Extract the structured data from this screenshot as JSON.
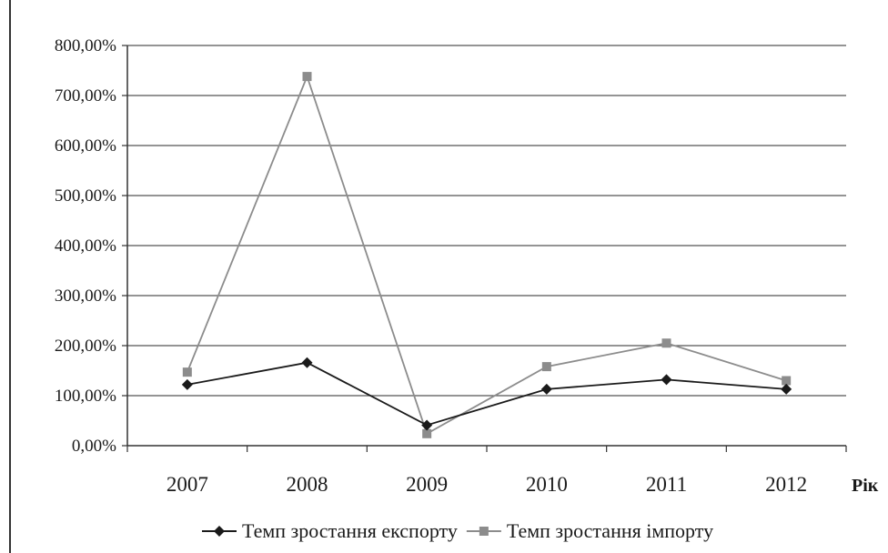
{
  "chart_data": {
    "type": "line",
    "categories": [
      "2007",
      "2008",
      "2009",
      "2010",
      "2011",
      "2012"
    ],
    "xlabel": "Рік",
    "ylabel": "",
    "ylim": [
      0,
      800
    ],
    "y_ticks": [
      "0,00%",
      "100,00%",
      "200,00%",
      "300,00%",
      "400,00%",
      "500,00%",
      "600,00%",
      "700,00%",
      "800,00%"
    ],
    "grid": true,
    "legend_position": "bottom",
    "series": [
      {
        "name": "Темп зростання експорту",
        "values": [
          122,
          166,
          41,
          113,
          132,
          113
        ],
        "color": "#1a1a1a",
        "marker": "diamond"
      },
      {
        "name": "Темп зростання імпорту",
        "values": [
          147,
          738,
          24,
          158,
          205,
          130
        ],
        "color": "#8c8c8c",
        "marker": "square"
      }
    ]
  }
}
